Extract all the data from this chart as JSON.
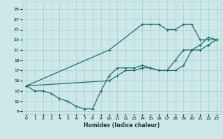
{
  "xlabel": "Humidex (Indice chaleur)",
  "bg_color": "#cde8e8",
  "grid_color": "#a8cccc",
  "line_color": "#1a7070",
  "xlim": [
    -0.5,
    23.5
  ],
  "ylim": [
    8.5,
    30.5
  ],
  "xticks": [
    0,
    1,
    2,
    3,
    4,
    5,
    6,
    7,
    8,
    9,
    10,
    11,
    12,
    13,
    14,
    15,
    16,
    17,
    18,
    19,
    20,
    21,
    22,
    23
  ],
  "yticks": [
    9,
    11,
    13,
    15,
    17,
    19,
    21,
    23,
    25,
    27,
    29
  ],
  "line1_x": [
    0,
    1,
    2,
    3,
    4,
    5,
    6,
    7,
    8,
    9,
    10,
    11,
    12,
    13,
    14,
    15,
    16,
    17,
    18,
    19,
    20,
    21,
    22,
    23
  ],
  "line1_y": [
    14,
    13,
    13,
    12.5,
    11.5,
    11,
    10,
    9.5,
    9.5,
    13,
    16,
    17.5,
    17.5,
    17.5,
    18,
    17.5,
    17,
    17,
    17,
    18,
    21,
    22,
    23.5,
    23
  ],
  "line2_x": [
    0,
    10,
    14,
    15,
    16,
    17,
    18,
    19,
    20,
    21,
    22,
    23
  ],
  "line2_y": [
    14,
    21,
    26,
    26,
    26,
    25,
    25,
    26,
    26,
    23,
    23,
    23
  ],
  "line3_x": [
    0,
    10,
    11,
    12,
    13,
    14,
    15,
    16,
    17,
    18,
    19,
    20,
    21,
    22,
    23
  ],
  "line3_y": [
    14,
    15,
    16,
    17,
    17,
    17.5,
    17.5,
    17,
    17,
    19,
    21,
    21,
    21,
    22,
    23
  ]
}
